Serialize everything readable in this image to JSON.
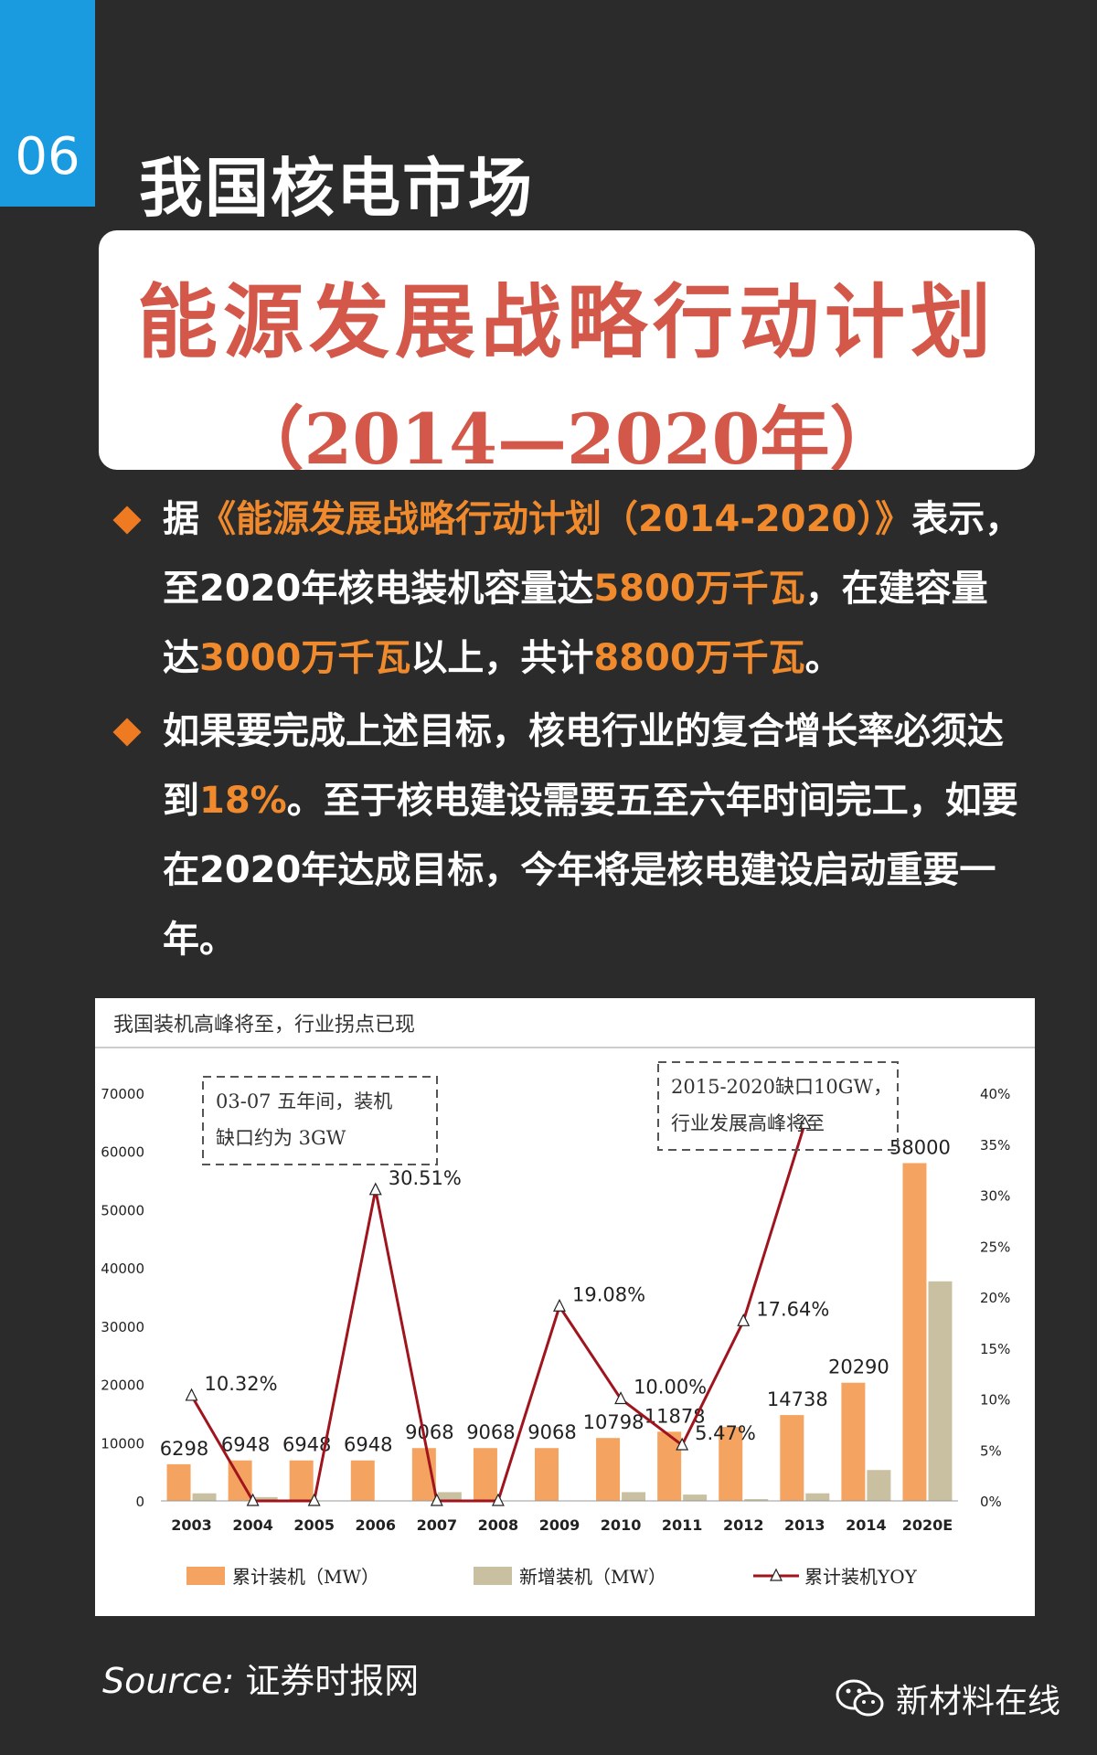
{
  "header": {
    "section_number": "06",
    "title": "我国核电市场"
  },
  "banner": {
    "line1": "能源发展战略行动计划",
    "line2": "（2014—2020年）"
  },
  "bullets": [
    {
      "segments": [
        {
          "text": "据",
          "hl": false
        },
        {
          "text": "《能源发展战略行动计划（2014-2020）》",
          "hl": true
        },
        {
          "text": "表示，至2020年核电装机容量达",
          "hl": false
        },
        {
          "text": "5800万千瓦",
          "hl": true
        },
        {
          "text": "，在建容量达",
          "hl": false
        },
        {
          "text": "3000万千瓦",
          "hl": true
        },
        {
          "text": "以上，共计",
          "hl": false
        },
        {
          "text": "8800万千瓦",
          "hl": true
        },
        {
          "text": "。",
          "hl": false
        }
      ]
    },
    {
      "segments": [
        {
          "text": "如果要完成上述目标，核电行业的复合增长率必须达到",
          "hl": false
        },
        {
          "text": "18%",
          "hl": true
        },
        {
          "text": "。至于核电建设需要五至六年时间完工，如要在2020年达成目标，今年将是核电建设启动重要一年。",
          "hl": false
        }
      ]
    }
  ],
  "colors": {
    "accent_blue": "#1a9be0",
    "highlight_orange": "#f08a2c",
    "bar_cumulative": "#f4a460",
    "bar_new": "#c8c0a0",
    "line_yoy": "#a0141e"
  },
  "chart_data": {
    "type": "bar",
    "title": "我国装机高峰将至，行业拐点已现",
    "categories": [
      "2003",
      "2004",
      "2005",
      "2006",
      "2007",
      "2008",
      "2009",
      "2010",
      "2011",
      "2012",
      "2013",
      "2014",
      "2020E"
    ],
    "series": [
      {
        "name": "累计装机（MW）",
        "type": "bar",
        "axis": "left",
        "values": [
          6298,
          6948,
          6948,
          6948,
          9068,
          9068,
          9068,
          10798,
          11878,
          12700,
          14738,
          20290,
          58000
        ]
      },
      {
        "name": "新增装机（MW）",
        "type": "bar",
        "axis": "left",
        "values": [
          1300,
          650,
          0,
          0,
          1500,
          0,
          0,
          1500,
          1080,
          300,
          1300,
          5300,
          37700
        ]
      },
      {
        "name": "累计装机YOY",
        "type": "line",
        "axis": "right",
        "values": [
          10.32,
          0,
          0,
          30.51,
          0,
          0,
          19.08,
          10.0,
          5.47,
          17.64,
          37.0,
          null,
          null
        ]
      }
    ],
    "bar_labels": [
      "6298",
      "6948",
      "6948",
      "6948",
      "9068",
      "9068",
      "9068",
      "10798",
      "11878",
      "",
      "14738",
      "20290",
      "58000"
    ],
    "line_labels": [
      "10.32%",
      "",
      "",
      "30.51%",
      "",
      "",
      "19.08%",
      "10.00%",
      "5.47%",
      "17.64%",
      "",
      "",
      ""
    ],
    "ylim_left": [
      0,
      70000
    ],
    "yticks_left": [
      "0",
      "10000",
      "20000",
      "30000",
      "40000",
      "50000",
      "60000",
      "70000"
    ],
    "ylim_right": [
      0,
      40
    ],
    "yticks_right": [
      "0%",
      "5%",
      "10%",
      "15%",
      "20%",
      "25%",
      "30%",
      "35%",
      "40%"
    ],
    "annotations": [
      {
        "lines": [
          "03-07 五年间，装机",
          "缺口约为 3GW"
        ]
      },
      {
        "lines": [
          "2015-2020缺口10GW，",
          "行业发展高峰将至"
        ]
      }
    ],
    "legend_position": "bottom"
  },
  "footer": {
    "source_label": "Source:",
    "source_value": " 证券时报网",
    "brand": "新材料在线"
  }
}
